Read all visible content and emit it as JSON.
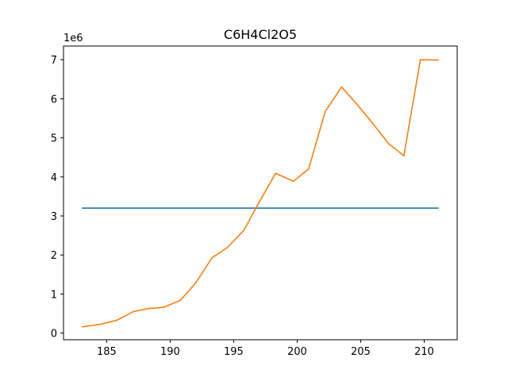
{
  "chart_data": {
    "type": "line",
    "title": "C6H4Cl2O5",
    "xlabel": "",
    "ylabel": "",
    "y_offset_label": "1e6",
    "xlim": [
      181.6,
      212.6
    ],
    "ylim": [
      -0.17,
      7.35
    ],
    "x_ticks": [
      185,
      190,
      195,
      200,
      205,
      210
    ],
    "y_ticks": [
      0,
      1,
      2,
      3,
      4,
      5,
      6,
      7
    ],
    "grid": false,
    "legend": "none",
    "series": [
      {
        "color": "#1f77b4",
        "x": [
          183.1,
          211.1
        ],
        "y": [
          3.2,
          3.2
        ]
      },
      {
        "color": "#ff7f0e",
        "x": [
          183.1,
          184.6,
          185.8,
          187.1,
          188.3,
          189.5,
          190.8,
          192.0,
          193.3,
          194.5,
          195.8,
          197.0,
          198.3,
          199.7,
          200.9,
          202.2,
          203.5,
          204.7,
          205.9,
          207.2,
          208.4,
          209.7,
          211.1
        ],
        "y": [
          0.16,
          0.23,
          0.33,
          0.55,
          0.63,
          0.66,
          0.84,
          1.28,
          1.93,
          2.19,
          2.63,
          3.35,
          4.09,
          3.89,
          4.2,
          5.67,
          6.3,
          5.86,
          5.39,
          4.85,
          4.54,
          7.0,
          6.99
        ]
      }
    ]
  }
}
